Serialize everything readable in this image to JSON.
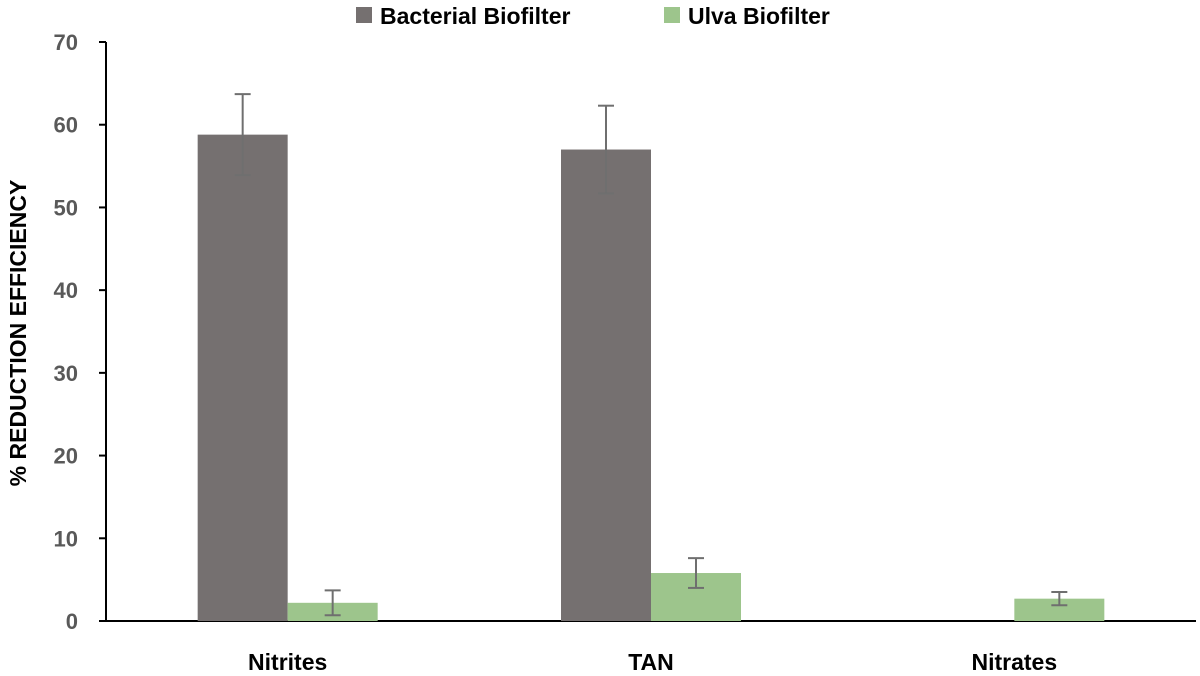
{
  "chart_data": {
    "type": "bar",
    "categories": [
      "Nitrites",
      "TAN",
      "Nitrates"
    ],
    "series": [
      {
        "name": "Bacterial Biofilter",
        "color": "#757070",
        "values": [
          58.8,
          57.0,
          0
        ],
        "error": [
          4.9,
          5.3,
          0
        ]
      },
      {
        "name": "Ulva Biofilter",
        "color": "#9dc58c",
        "values": [
          2.2,
          5.8,
          2.7
        ],
        "error": [
          1.5,
          1.8,
          0.8
        ]
      }
    ],
    "ylabel": "% REDUCTION EFFICIENCY",
    "ylim": [
      0,
      70
    ],
    "yticks": [
      "0",
      "10",
      "20",
      "30",
      "40",
      "50",
      "60",
      "70"
    ],
    "grid": false,
    "legend_position": "top-center"
  }
}
